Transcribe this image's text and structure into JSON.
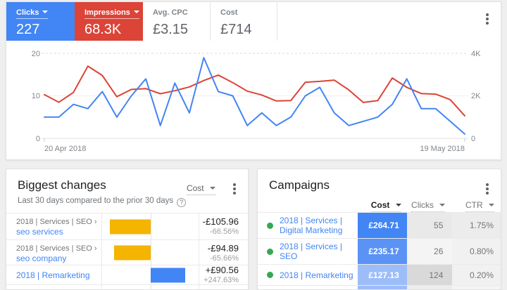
{
  "colors": {
    "accent_blue": "#4285f4",
    "accent_red": "#db4437",
    "accent_yellow": "#f4b400",
    "status_green": "#34a853"
  },
  "scorecards": [
    {
      "label": "Clicks",
      "value": "227",
      "bg": "#4285f4",
      "selected": true
    },
    {
      "label": "Impressions",
      "value": "68.3K",
      "bg": "#db4437",
      "selected": true
    },
    {
      "label": "Avg. CPC",
      "value": "£3.15"
    },
    {
      "label": "Cost",
      "value": "£714"
    }
  ],
  "chart_data": {
    "type": "line",
    "x_ticks": [
      "20 Apr 2018",
      "19 May 2018"
    ],
    "grid": "horizontal",
    "legend": "none",
    "left_axis": {
      "label": "Clicks",
      "ticks": [
        "20",
        "10",
        "0"
      ],
      "range": [
        0,
        20
      ]
    },
    "right_axis": {
      "label": "Impressions",
      "ticks": [
        "4K",
        "2K",
        "0"
      ],
      "range": [
        0,
        4000
      ]
    },
    "series": [
      {
        "name": "impressions",
        "axis": "right",
        "color": "#db4437",
        "values": [
          2060,
          1700,
          2160,
          3400,
          2960,
          1960,
          2300,
          2340,
          2100,
          2240,
          2420,
          2720,
          2980,
          2620,
          2220,
          2040,
          1760,
          1780,
          2640,
          2680,
          2740,
          2280,
          1690,
          1780,
          2840,
          2400,
          2110,
          2080,
          1820,
          1060
        ]
      },
      {
        "name": "clicks",
        "axis": "left",
        "color": "#4285f4",
        "values": [
          5,
          5,
          8,
          7,
          11,
          5,
          10,
          14,
          3,
          13,
          6,
          19,
          11,
          10,
          3,
          6,
          3,
          5,
          10,
          12,
          6,
          3,
          4,
          5,
          8,
          14,
          7,
          7,
          4,
          1
        ]
      }
    ]
  },
  "biggest_changes": {
    "title": "Biggest changes",
    "subtitle": "Last 30 days compared to the prior 30 days",
    "metric_selector": "Cost",
    "rows": [
      {
        "path": "2018 | Services | SEO ›",
        "name": "seo services",
        "change": -105.96,
        "value": "-£105.96",
        "pct": "-66.56%",
        "bar_color": "#f4b400"
      },
      {
        "path": "2018 | Services | SEO ›",
        "name": "seo company",
        "change": -94.89,
        "value": "-£94.89",
        "pct": "-65.66%",
        "bar_color": "#f4b400"
      },
      {
        "path": "",
        "name": "2018 | Remarketing",
        "change": 90.56,
        "value": "+£90.56",
        "pct": "+247.63%",
        "bar_color": "#4285f4"
      }
    ]
  },
  "campaigns": {
    "title": "Campaigns",
    "columns": [
      {
        "label": "Cost",
        "active": true
      },
      {
        "label": "Clicks"
      },
      {
        "label": "CTR"
      }
    ],
    "status_color": "#34a853",
    "rows": [
      {
        "name": "2018 | Services | Digital Marketing",
        "cost": "£264.71",
        "clicks": "55",
        "ctr": "1.75%",
        "cost_bg": "#4285f4",
        "clicks_bg": "#e9e9e9",
        "ctr_bg": "#ececec"
      },
      {
        "name": "2018 | Services | SEO",
        "cost": "£235.17",
        "clicks": "26",
        "ctr": "0.80%",
        "cost_bg": "#5b93f5",
        "clicks_bg": "#f4f4f4",
        "ctr_bg": "#f1f1f1"
      },
      {
        "name": "2018 | Remarketing",
        "cost": "£127.13",
        "clicks": "124",
        "ctr": "0.20%",
        "cost_bg": "#9dbdf9",
        "clicks_bg": "#d9d9d9",
        "ctr_bg": "#f1f1f1"
      }
    ],
    "partial_row": {
      "cost_bg": "#9bbcf8",
      "clicks_bg": "#ededed",
      "ctr_bg": "#f4f4f4"
    }
  }
}
